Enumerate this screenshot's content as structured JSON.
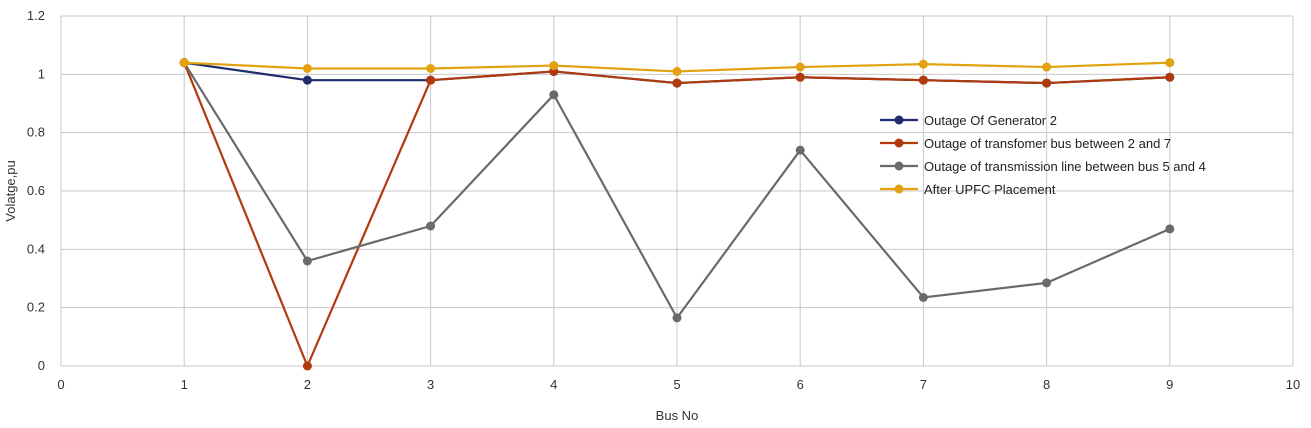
{
  "chart_data": {
    "type": "line",
    "title": "",
    "xlabel": "Bus No",
    "ylabel": "Volatge,pu",
    "xlim": [
      0,
      10
    ],
    "ylim": [
      0,
      1.2
    ],
    "xticks": [
      "0",
      "1",
      "2",
      "3",
      "4",
      "5",
      "6",
      "7",
      "8",
      "9",
      "10"
    ],
    "yticks": [
      "0",
      "0.2",
      "0.4",
      "0.6",
      "0.8",
      "1",
      "1.2"
    ],
    "grid": true,
    "legend_position": "right",
    "x": [
      1,
      2,
      3,
      4,
      5,
      6,
      7,
      8,
      9
    ],
    "series": [
      {
        "name": "Outage Of Generator 2",
        "color": "#1f2d6e",
        "values": [
          1.04,
          0.98,
          0.98,
          1.01,
          0.97,
          0.99,
          0.98,
          0.97,
          0.99
        ]
      },
      {
        "name": "Outage of transfomer bus between 2 and 7",
        "color": "#b03a0c",
        "values": [
          1.04,
          0.0,
          0.98,
          1.01,
          0.97,
          0.99,
          0.98,
          0.97,
          0.99
        ]
      },
      {
        "name": "Outage of transmission line between bus 5 and 4",
        "color": "#6a6a6a",
        "values": [
          1.04,
          0.36,
          0.48,
          0.93,
          0.165,
          0.74,
          0.235,
          0.285,
          0.47
        ]
      },
      {
        "name": "After UPFC Placement",
        "color": "#e2a10f",
        "values": [
          1.04,
          1.02,
          1.02,
          1.03,
          1.01,
          1.025,
          1.035,
          1.025,
          1.04
        ]
      }
    ]
  }
}
